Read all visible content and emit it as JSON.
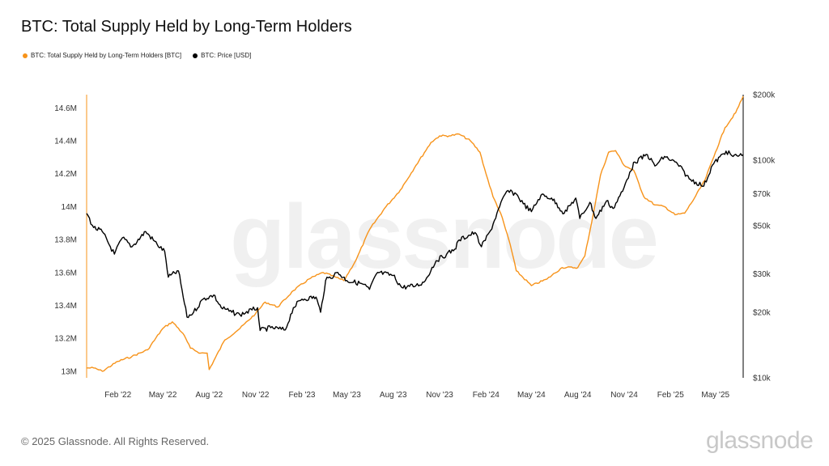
{
  "title": "BTC: Total Supply Held by Long-Term Holders",
  "legend": [
    {
      "label": "BTC: Total Supply Held by Long-Term Holders [BTC]",
      "color": "#f7931a"
    },
    {
      "label": "BTC: Price [USD]",
      "color": "#000000"
    }
  ],
  "footer": "© 2025 Glassnode. All Rights Reserved.",
  "logo": "glassnode",
  "watermark": "glassnode",
  "colors": {
    "lth_supply": "#f7931a",
    "price": "#000000",
    "axis": "#000000",
    "tick_text": "#333333"
  },
  "chart_data": {
    "type": "line",
    "title": "BTC: Total Supply Held by Long-Term Holders",
    "x_range": [
      "2021-12-01",
      "2025-06-25"
    ],
    "x_ticks": [
      "Feb '22",
      "May '22",
      "Aug '22",
      "Nov '22",
      "Feb '23",
      "May '23",
      "Aug '23",
      "Nov '23",
      "Feb '24",
      "May '24",
      "Aug '24",
      "Nov '24",
      "Feb '25",
      "May '25"
    ],
    "x_tick_dates": [
      "2022-02-01",
      "2022-05-01",
      "2022-08-01",
      "2022-11-01",
      "2023-02-01",
      "2023-05-01",
      "2023-08-01",
      "2023-11-01",
      "2024-02-01",
      "2024-05-01",
      "2024-08-01",
      "2024-11-01",
      "2025-02-01",
      "2025-05-01"
    ],
    "y_left": {
      "min": 12960000,
      "max": 14680000,
      "ticks": [
        13000000,
        13200000,
        13400000,
        13600000,
        13800000,
        14000000,
        14200000,
        14400000,
        14600000
      ],
      "tick_labels": [
        "13M",
        "13.2M",
        "13.4M",
        "13.6M",
        "13.8M",
        "14M",
        "14.2M",
        "14.4M",
        "14.6M"
      ]
    },
    "y_right": {
      "scale": "log",
      "min": 10000,
      "max": 200000,
      "ticks": [
        10000,
        20000,
        30000,
        50000,
        70000,
        100000,
        200000
      ],
      "tick_labels": [
        "$10k",
        "$20k",
        "$30k",
        "$50k",
        "$70k",
        "$100k",
        "$200k"
      ]
    },
    "grid": false,
    "series": [
      {
        "name": "BTC: Total Supply Held by Long-Term Holders [BTC]",
        "axis": "left",
        "color": "#f7931a",
        "x": [
          "2021-12-01",
          "2021-12-15",
          "2022-01-01",
          "2022-02-01",
          "2022-03-01",
          "2022-04-01",
          "2022-05-01",
          "2022-05-20",
          "2022-06-10",
          "2022-06-25",
          "2022-07-15",
          "2022-07-28",
          "2022-08-01",
          "2022-09-01",
          "2022-10-01",
          "2022-11-01",
          "2022-11-20",
          "2022-12-15",
          "2023-01-15",
          "2023-02-15",
          "2023-03-15",
          "2023-04-10",
          "2023-04-25",
          "2023-05-20",
          "2023-06-15",
          "2023-07-15",
          "2023-08-15",
          "2023-09-15",
          "2023-10-15",
          "2023-11-01",
          "2023-11-20",
          "2023-12-10",
          "2024-01-01",
          "2024-01-20",
          "2024-02-01",
          "2024-02-15",
          "2024-03-01",
          "2024-03-20",
          "2024-04-01",
          "2024-05-01",
          "2024-06-01",
          "2024-07-01",
          "2024-08-01",
          "2024-08-15",
          "2024-09-01",
          "2024-09-15",
          "2024-10-01",
          "2024-10-15",
          "2024-11-01",
          "2024-11-20",
          "2024-12-10",
          "2025-01-01",
          "2025-01-20",
          "2025-02-10",
          "2025-03-01",
          "2025-03-20",
          "2025-04-10",
          "2025-05-01",
          "2025-05-20",
          "2025-06-10",
          "2025-06-25"
        ],
        "y": [
          13020000,
          13020000,
          13000000,
          13060000,
          13090000,
          13130000,
          13260000,
          13300000,
          13230000,
          13140000,
          13110000,
          13110000,
          13010000,
          13190000,
          13260000,
          13350000,
          13420000,
          13390000,
          13490000,
          13560000,
          13600000,
          13570000,
          13550000,
          13680000,
          13860000,
          13990000,
          14100000,
          14250000,
          14390000,
          14430000,
          14430000,
          14440000,
          14400000,
          14330000,
          14200000,
          14060000,
          13960000,
          13770000,
          13610000,
          13520000,
          13560000,
          13630000,
          13630000,
          13700000,
          13960000,
          14190000,
          14330000,
          14340000,
          14250000,
          14220000,
          14060000,
          14010000,
          14000000,
          13950000,
          13960000,
          14050000,
          14160000,
          14330000,
          14480000,
          14570000,
          14670000
        ]
      },
      {
        "name": "BTC: Price [USD]",
        "axis": "right",
        "color": "#000000",
        "x": [
          "2021-12-01",
          "2021-12-15",
          "2022-01-01",
          "2022-01-25",
          "2022-02-10",
          "2022-03-01",
          "2022-03-28",
          "2022-04-20",
          "2022-05-05",
          "2022-05-12",
          "2022-06-01",
          "2022-06-13",
          "2022-06-18",
          "2022-07-01",
          "2022-07-20",
          "2022-08-10",
          "2022-08-25",
          "2022-09-15",
          "2022-10-01",
          "2022-10-25",
          "2022-11-05",
          "2022-11-10",
          "2022-12-01",
          "2022-12-30",
          "2023-01-15",
          "2023-02-01",
          "2023-03-01",
          "2023-03-10",
          "2023-03-20",
          "2023-04-13",
          "2023-05-01",
          "2023-06-01",
          "2023-06-15",
          "2023-07-01",
          "2023-08-01",
          "2023-08-18",
          "2023-09-15",
          "2023-10-01",
          "2023-10-25",
          "2023-11-15",
          "2023-12-01",
          "2023-12-10",
          "2024-01-10",
          "2024-01-23",
          "2024-02-10",
          "2024-02-28",
          "2024-03-13",
          "2024-04-01",
          "2024-04-15",
          "2024-05-01",
          "2024-05-20",
          "2024-06-10",
          "2024-07-05",
          "2024-07-28",
          "2024-08-05",
          "2024-08-25",
          "2024-09-06",
          "2024-09-27",
          "2024-10-10",
          "2024-10-29",
          "2024-11-12",
          "2024-11-22",
          "2024-12-17",
          "2025-01-01",
          "2025-01-20",
          "2025-02-15",
          "2025-03-10",
          "2025-04-08",
          "2025-04-25",
          "2025-05-22",
          "2025-06-05",
          "2025-06-25"
        ],
        "y": [
          57000,
          49000,
          47000,
          37000,
          44000,
          40000,
          47000,
          41000,
          38000,
          29000,
          31000,
          22000,
          19000,
          20000,
          23000,
          24000,
          21000,
          20000,
          19500,
          20500,
          21000,
          16500,
          17000,
          16600,
          21000,
          23000,
          23500,
          20000,
          28000,
          30500,
          28000,
          27000,
          25500,
          30500,
          29500,
          26000,
          26500,
          27500,
          34500,
          37000,
          39000,
          43000,
          46500,
          40000,
          47500,
          61000,
          72000,
          70000,
          63000,
          58000,
          69000,
          67000,
          57000,
          67000,
          54000,
          64000,
          54000,
          65000,
          60000,
          72000,
          88000,
          98000,
          106000,
          94000,
          104000,
          96000,
          82000,
          76000,
          95000,
          110000,
          104000,
          106000
        ]
      }
    ]
  }
}
